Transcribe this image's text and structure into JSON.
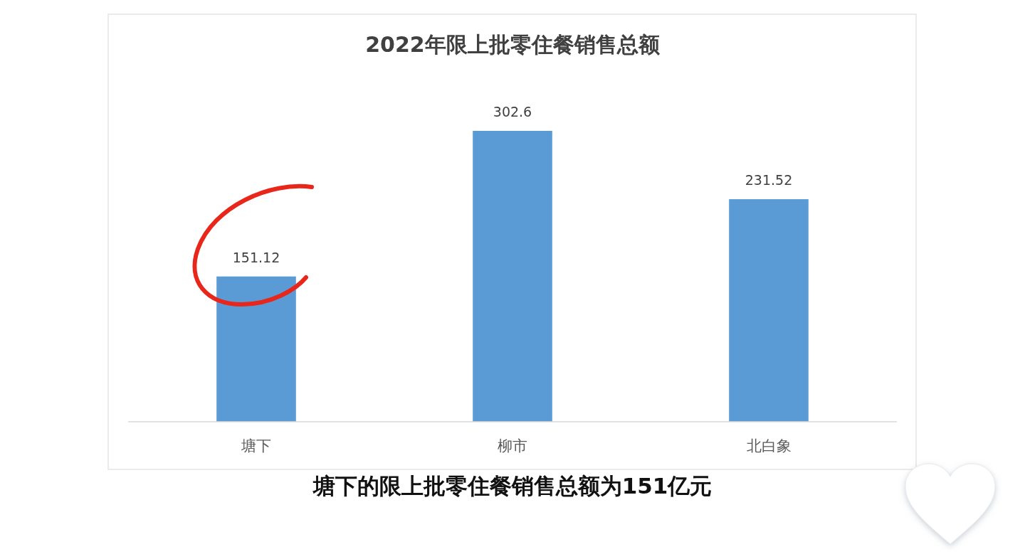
{
  "chart_data": {
    "type": "bar",
    "title": "2022年限上批零住餐销售总额",
    "categories": [
      "塘下",
      "柳市",
      "北白象"
    ],
    "values": [
      151.12,
      302.6,
      231.52
    ],
    "color": "#5b9bd5",
    "data_labels": true,
    "annotations": [
      "塘下的限上批零住餐销售总额为151亿元"
    ]
  }
}
